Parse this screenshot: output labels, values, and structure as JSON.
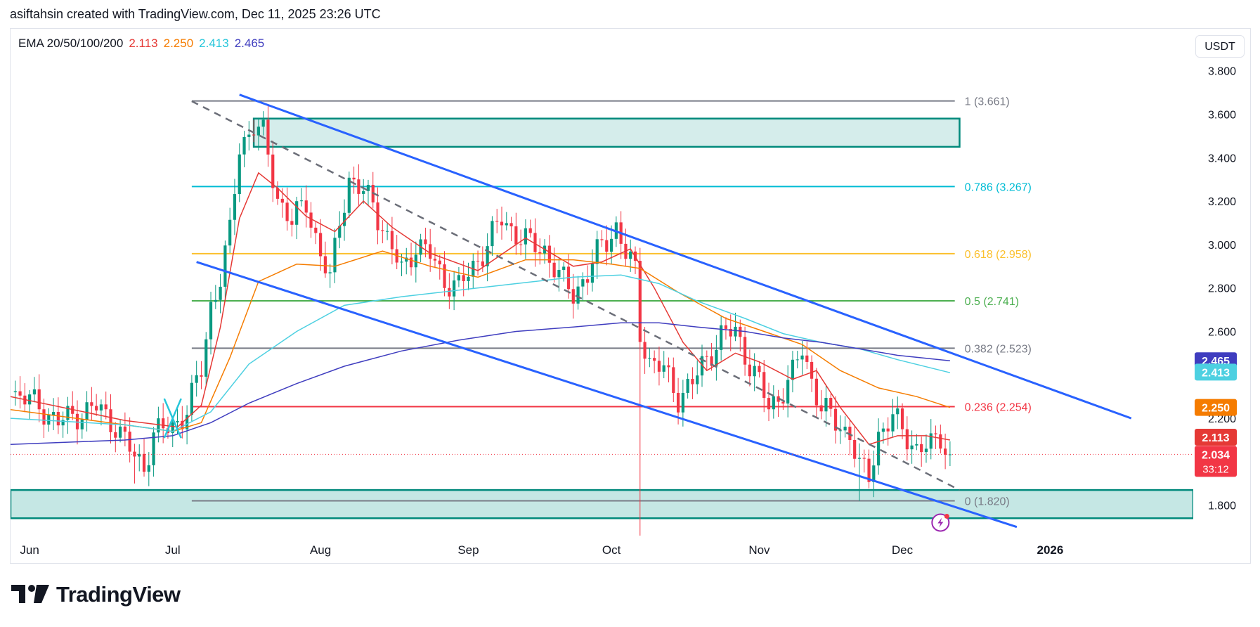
{
  "header": {
    "title": "asiftahsin created with TradingView.com, Dec 11, 2025 23:26 UTC"
  },
  "legend": {
    "label": "EMA 20/50/100/200",
    "ema20": "2.113",
    "ema50": "2.250",
    "ema100": "2.413",
    "ema200": "2.465"
  },
  "colors": {
    "ema20": "#e53935",
    "ema50": "#f57c00",
    "ema100": "#4dd0e1",
    "ema200": "#3f3dbf",
    "up": "#089981",
    "down": "#f23645",
    "channel": "#2962ff",
    "fib1": "#787b86",
    "fib786": "#00bcd4",
    "fib618": "#fbc02d",
    "fib05": "#4caf50",
    "fib382": "#787b86",
    "fib236": "#f23645",
    "fib0": "#787b86",
    "zone": "#00897b"
  },
  "currency": "USDT",
  "footer": {
    "brand": "TradingView"
  },
  "chart_data": {
    "type": "candlestick",
    "title": "EMA 20/50/100/200",
    "xlabel": "",
    "ylabel": "USDT",
    "ylim": [
      1.66,
      3.99
    ],
    "y_ticks": [
      "3.800",
      "3.600",
      "3.400",
      "3.200",
      "3.000",
      "2.800",
      "2.600",
      "2.200",
      "1.800"
    ],
    "x_ticks": [
      {
        "label": "Jun",
        "day": 0
      },
      {
        "label": "Jul",
        "day": 30
      },
      {
        "label": "Aug",
        "day": 61
      },
      {
        "label": "Sep",
        "day": 92
      },
      {
        "label": "Oct",
        "day": 122
      },
      {
        "label": "Nov",
        "day": 153
      },
      {
        "label": "Dec",
        "day": 183
      },
      {
        "label": "2026",
        "day": 214
      }
    ],
    "x_range_days": [
      -4,
      244
    ],
    "close_path": [
      [
        -4,
        2.32
      ],
      [
        2,
        2.26
      ],
      [
        6,
        2.18
      ],
      [
        10,
        2.22
      ],
      [
        14,
        2.25
      ],
      [
        18,
        2.17
      ],
      [
        22,
        2.02
      ],
      [
        24,
        1.98
      ],
      [
        26,
        2.13
      ],
      [
        30,
        2.16
      ],
      [
        33,
        2.24
      ],
      [
        36,
        2.42
      ],
      [
        38,
        2.72
      ],
      [
        40,
        2.85
      ],
      [
        42,
        3.05
      ],
      [
        44,
        3.45
      ],
      [
        47,
        3.55
      ],
      [
        49,
        3.5
      ],
      [
        52,
        3.22
      ],
      [
        55,
        3.1
      ],
      [
        58,
        3.2
      ],
      [
        61,
        2.95
      ],
      [
        63,
        2.83
      ],
      [
        65,
        3.12
      ],
      [
        67,
        3.3
      ],
      [
        69,
        3.25
      ],
      [
        72,
        3.2
      ],
      [
        75,
        3.02
      ],
      [
        78,
        2.88
      ],
      [
        81,
        3.0
      ],
      [
        84,
        2.95
      ],
      [
        87,
        2.84
      ],
      [
        90,
        2.8
      ],
      [
        93,
        2.9
      ],
      [
        96,
        3.0
      ],
      [
        99,
        3.12
      ],
      [
        102,
        3.05
      ],
      [
        105,
        3.0
      ],
      [
        108,
        2.98
      ],
      [
        111,
        2.85
      ],
      [
        114,
        2.78
      ],
      [
        117,
        2.86
      ],
      [
        120,
        3.0
      ],
      [
        123,
        3.08
      ],
      [
        125,
        2.95
      ],
      [
        127,
        2.88
      ],
      [
        128,
        2.6
      ],
      [
        130,
        2.46
      ],
      [
        133,
        2.42
      ],
      [
        136,
        2.3
      ],
      [
        139,
        2.36
      ],
      [
        142,
        2.48
      ],
      [
        145,
        2.58
      ],
      [
        148,
        2.6
      ],
      [
        151,
        2.45
      ],
      [
        153,
        2.36
      ],
      [
        155,
        2.25
      ],
      [
        157,
        2.3
      ],
      [
        160,
        2.4
      ],
      [
        162,
        2.52
      ],
      [
        164,
        2.38
      ],
      [
        166,
        2.25
      ],
      [
        169,
        2.18
      ],
      [
        172,
        2.13
      ],
      [
        174,
        1.97
      ],
      [
        176,
        1.93
      ],
      [
        178,
        2.13
      ],
      [
        181,
        2.2
      ],
      [
        184,
        2.12
      ],
      [
        186,
        2.06
      ],
      [
        189,
        2.07
      ],
      [
        191,
        2.12
      ],
      [
        193,
        2.034
      ]
    ],
    "special_wicks": [
      {
        "day": 22,
        "low": 1.9
      },
      {
        "day": 128,
        "low": 1.66
      },
      {
        "day": 174,
        "low": 1.82
      }
    ],
    "last_price": 2.034,
    "countdown": "33:12",
    "ema_series": [
      {
        "name": "EMA 20",
        "value": "2.113",
        "points": [
          [
            -4,
            2.3
          ],
          [
            20,
            2.19
          ],
          [
            31,
            2.16
          ],
          [
            36,
            2.26
          ],
          [
            40,
            2.62
          ],
          [
            44,
            3.12
          ],
          [
            48,
            3.33
          ],
          [
            52,
            3.26
          ],
          [
            58,
            3.13
          ],
          [
            64,
            3.06
          ],
          [
            70,
            3.2
          ],
          [
            76,
            3.08
          ],
          [
            84,
            2.96
          ],
          [
            94,
            2.88
          ],
          [
            104,
            3.03
          ],
          [
            114,
            2.9
          ],
          [
            120,
            2.92
          ],
          [
            126,
            2.98
          ],
          [
            131,
            2.8
          ],
          [
            137,
            2.55
          ],
          [
            142,
            2.42
          ],
          [
            148,
            2.5
          ],
          [
            153,
            2.46
          ],
          [
            160,
            2.38
          ],
          [
            165,
            2.42
          ],
          [
            170,
            2.25
          ],
          [
            176,
            2.08
          ],
          [
            182,
            2.12
          ],
          [
            188,
            2.12
          ],
          [
            193,
            2.1
          ]
        ]
      },
      {
        "name": "EMA 50",
        "value": "2.250",
        "points": [
          [
            -4,
            2.24
          ],
          [
            20,
            2.17
          ],
          [
            30,
            2.14
          ],
          [
            36,
            2.18
          ],
          [
            42,
            2.48
          ],
          [
            48,
            2.83
          ],
          [
            56,
            2.91
          ],
          [
            64,
            2.9
          ],
          [
            74,
            2.97
          ],
          [
            84,
            2.9
          ],
          [
            94,
            2.85
          ],
          [
            104,
            2.93
          ],
          [
            114,
            2.93
          ],
          [
            122,
            2.91
          ],
          [
            128,
            2.89
          ],
          [
            136,
            2.78
          ],
          [
            146,
            2.66
          ],
          [
            154,
            2.6
          ],
          [
            162,
            2.54
          ],
          [
            170,
            2.42
          ],
          [
            178,
            2.34
          ],
          [
            186,
            2.3
          ],
          [
            193,
            2.25
          ]
        ]
      },
      {
        "name": "EMA 100",
        "value": "2.413",
        "points": [
          [
            -4,
            2.2
          ],
          [
            20,
            2.17
          ],
          [
            30,
            2.14
          ],
          [
            38,
            2.23
          ],
          [
            46,
            2.45
          ],
          [
            56,
            2.6
          ],
          [
            66,
            2.72
          ],
          [
            78,
            2.76
          ],
          [
            90,
            2.79
          ],
          [
            102,
            2.82
          ],
          [
            114,
            2.85
          ],
          [
            124,
            2.86
          ],
          [
            132,
            2.82
          ],
          [
            140,
            2.74
          ],
          [
            150,
            2.66
          ],
          [
            158,
            2.59
          ],
          [
            166,
            2.55
          ],
          [
            174,
            2.52
          ],
          [
            182,
            2.47
          ],
          [
            193,
            2.41
          ]
        ]
      },
      {
        "name": "EMA 200",
        "value": "2.465",
        "points": [
          [
            -4,
            2.08
          ],
          [
            20,
            2.1
          ],
          [
            30,
            2.12
          ],
          [
            38,
            2.18
          ],
          [
            46,
            2.27
          ],
          [
            56,
            2.36
          ],
          [
            66,
            2.44
          ],
          [
            78,
            2.51
          ],
          [
            90,
            2.56
          ],
          [
            102,
            2.6
          ],
          [
            114,
            2.62
          ],
          [
            124,
            2.64
          ],
          [
            132,
            2.64
          ],
          [
            140,
            2.62
          ],
          [
            150,
            2.6
          ],
          [
            158,
            2.57
          ],
          [
            166,
            2.55
          ],
          [
            174,
            2.52
          ],
          [
            182,
            2.49
          ],
          [
            193,
            2.465
          ]
        ]
      }
    ],
    "fib_levels": [
      {
        "ratio": "1",
        "price": 3.661,
        "label": "1 (3.661)",
        "color_key": "fib1"
      },
      {
        "ratio": "0.786",
        "price": 3.267,
        "label": "0.786 (3.267)",
        "color_key": "fib786"
      },
      {
        "ratio": "0.618",
        "price": 2.958,
        "label": "0.618 (2.958)",
        "color_key": "fib618"
      },
      {
        "ratio": "0.5",
        "price": 2.741,
        "label": "0.5 (2.741)",
        "color_key": "fib05"
      },
      {
        "ratio": "0.382",
        "price": 2.523,
        "label": "0.382 (2.523)",
        "color_key": "fib382"
      },
      {
        "ratio": "0.236",
        "price": 2.254,
        "label": "0.236 (2.254)",
        "color_key": "fib236"
      },
      {
        "ratio": "0",
        "price": 1.82,
        "label": "0 (1.820)",
        "color_key": "fib0"
      }
    ],
    "fib_start_day": 34,
    "fib_end_day": 194,
    "zones": [
      {
        "name": "resistance",
        "day_from": 47,
        "day_to": 195,
        "price_top": 3.58,
        "price_bottom": 3.45
      },
      {
        "name": "support",
        "day_from": -4,
        "day_to": 244,
        "price_top": 1.87,
        "price_bottom": 1.74
      }
    ],
    "channel_lines": [
      {
        "name": "upper",
        "from": [
          44,
          3.69
        ],
        "to": [
          231,
          2.2
        ]
      },
      {
        "name": "lower",
        "from": [
          35,
          2.92
        ],
        "to": [
          207,
          1.7
        ]
      },
      {
        "name": "midline",
        "from": [
          34,
          3.66
        ],
        "to": [
          195,
          1.87
        ]
      }
    ],
    "price_labels": [
      {
        "text": "2.465",
        "price": 2.465,
        "color_key": "ema200"
      },
      {
        "text": "2.413",
        "price": 2.413,
        "color_key": "ema100"
      },
      {
        "text": "2.250",
        "price": 2.25,
        "color_key": "ema50"
      },
      {
        "text": "2.113",
        "price": 2.113,
        "color_key": "ema20"
      },
      {
        "text": "2.034",
        "price": 2.034,
        "color_key": "down"
      }
    ]
  }
}
